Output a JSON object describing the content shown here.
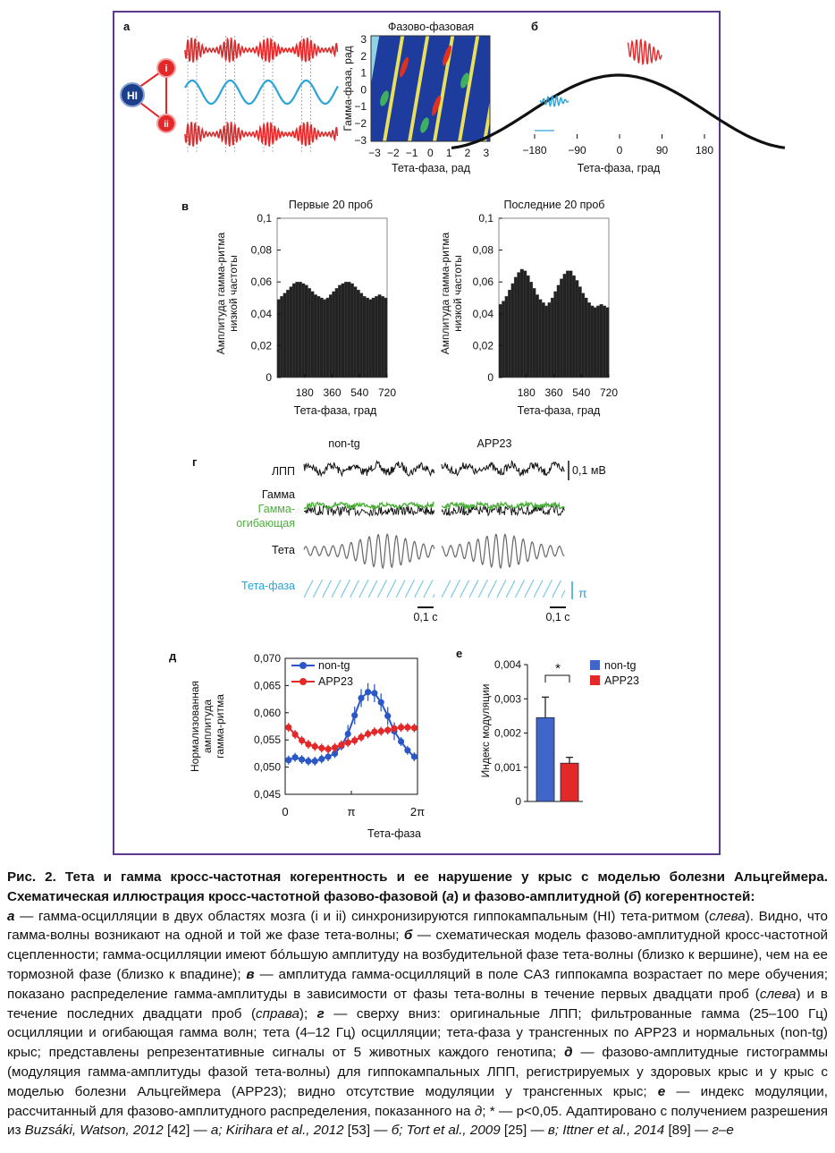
{
  "panels": {
    "a": {
      "letter": "а",
      "hl_label": "HI",
      "node_i": "i",
      "node_ii": "ii",
      "heatmap_title": "Фазово-фазовая",
      "ylabel": "Гамма-фаза, рад",
      "xlabel": "Тета-фаза, рад",
      "yticks": [
        "3",
        "2",
        "1",
        "0",
        "−1",
        "−2",
        "−3"
      ],
      "xticks": [
        "−3",
        "−2",
        "−1",
        "0",
        "1",
        "2",
        "3"
      ]
    },
    "b": {
      "letter": "б",
      "xticks": [
        "−180",
        "−90",
        "0",
        "90",
        "180"
      ],
      "xlabel": "Тета-фаза, град"
    },
    "c": {
      "letter": "в",
      "left_title": "Первые 20 проб",
      "right_title": "Последние 20 проб",
      "ylabel1": "Амплитуда  гамма-ритма",
      "ylabel2": "низкой частоты",
      "yticks": [
        "0,1",
        "0,08",
        "0,06",
        "0,04",
        "0,02",
        "0"
      ],
      "xticks": [
        "180",
        "360",
        "540",
        "720"
      ],
      "xlabel": "Тета-фаза, град"
    },
    "d": {
      "letter": "г",
      "col1": "non-tg",
      "col2": "APP23",
      "row_lfp": "ЛПП",
      "row_gamma": "Гамма",
      "row_env1": "Гамма-",
      "row_env2": "огибающая",
      "row_theta": "Тета",
      "row_phase": "Тета-фаза",
      "scale_mv": "0,1 мВ",
      "scale_pi": "π",
      "scale_s1": "0,1 с",
      "scale_s2": "0,1 с"
    },
    "e": {
      "letter": "д",
      "ylabel1": "Нормализованная",
      "ylabel2": "амплитуда",
      "ylabel3": "гамма-ритма",
      "yticks": [
        "0,070",
        "0,065",
        "0,060",
        "0,055",
        "0,050",
        "0,045"
      ],
      "xticks": [
        "0",
        "π",
        "2π"
      ],
      "xlabel": "Тета-фаза",
      "legend1": "non-tg",
      "legend2": "APP23"
    },
    "f": {
      "letter": "е",
      "ylabel": "Индекс модуляции",
      "yticks": [
        "0,004",
        "0,003",
        "0,002",
        "0,001",
        "0"
      ],
      "star": "*",
      "legend1": "non-tg",
      "legend2": "APP23"
    }
  },
  "chart_data": [
    {
      "type": "bar",
      "panel": "в-left",
      "title": "Первые 20 проб",
      "xlabel": "Тета-фаза, град",
      "ylabel": "Амплитуда гамма-ритма низкой частоты",
      "xlim": [
        0,
        720
      ],
      "ylim": [
        0,
        0.1
      ],
      "x": [
        10,
        30,
        50,
        70,
        90,
        110,
        130,
        150,
        170,
        190,
        210,
        230,
        250,
        270,
        290,
        310,
        330,
        350,
        370,
        390,
        410,
        430,
        450,
        470,
        490,
        510,
        530,
        550,
        570,
        590,
        610,
        630,
        650,
        670,
        690,
        710
      ],
      "values": [
        0.049,
        0.051,
        0.053,
        0.055,
        0.057,
        0.059,
        0.06,
        0.06,
        0.059,
        0.058,
        0.056,
        0.054,
        0.052,
        0.051,
        0.05,
        0.049,
        0.05,
        0.052,
        0.054,
        0.056,
        0.058,
        0.059,
        0.06,
        0.06,
        0.059,
        0.057,
        0.055,
        0.053,
        0.051,
        0.05,
        0.049,
        0.05,
        0.051,
        0.052,
        0.051,
        0.05
      ]
    },
    {
      "type": "bar",
      "panel": "в-right",
      "title": "Последние 20 проб",
      "xlabel": "Тета-фаза, град",
      "ylabel": "Амплитуда гамма-ритма низкой частоты",
      "xlim": [
        0,
        720
      ],
      "ylim": [
        0,
        0.1
      ],
      "x": [
        10,
        30,
        50,
        70,
        90,
        110,
        130,
        150,
        170,
        190,
        210,
        230,
        250,
        270,
        290,
        310,
        330,
        350,
        370,
        390,
        410,
        430,
        450,
        470,
        490,
        510,
        530,
        550,
        570,
        590,
        610,
        630,
        650,
        670,
        690,
        710
      ],
      "values": [
        0.046,
        0.048,
        0.051,
        0.055,
        0.059,
        0.063,
        0.066,
        0.068,
        0.067,
        0.064,
        0.06,
        0.056,
        0.052,
        0.049,
        0.047,
        0.045,
        0.047,
        0.05,
        0.054,
        0.058,
        0.062,
        0.065,
        0.067,
        0.067,
        0.064,
        0.061,
        0.057,
        0.053,
        0.05,
        0.047,
        0.045,
        0.044,
        0.045,
        0.046,
        0.045,
        0.044
      ]
    },
    {
      "type": "line",
      "panel": "д",
      "xlabel": "Тета-фаза",
      "ylabel": "Нормализованная амплитуда гамма-ритма",
      "xlim": [
        0,
        6.283
      ],
      "ylim": [
        0.045,
        0.07
      ],
      "series": [
        {
          "name": "non-tg",
          "color": "#2b58c6",
          "x": [
            0.16,
            0.47,
            0.79,
            1.1,
            1.41,
            1.73,
            2.04,
            2.36,
            2.67,
            2.98,
            3.3,
            3.61,
            3.93,
            4.24,
            4.55,
            4.87,
            5.18,
            5.5,
            5.81,
            6.13
          ],
          "values": [
            0.0513,
            0.0518,
            0.0514,
            0.0511,
            0.0511,
            0.0515,
            0.0519,
            0.0525,
            0.0539,
            0.0561,
            0.0595,
            0.0627,
            0.0638,
            0.0636,
            0.0619,
            0.0594,
            0.0566,
            0.0547,
            0.0531,
            0.0519
          ]
        },
        {
          "name": "APP23",
          "color": "#e3282a",
          "x": [
            0.16,
            0.47,
            0.79,
            1.1,
            1.41,
            1.73,
            2.04,
            2.36,
            2.67,
            2.98,
            3.3,
            3.61,
            3.93,
            4.24,
            4.55,
            4.87,
            5.18,
            5.5,
            5.81,
            6.13
          ],
          "values": [
            0.0573,
            0.056,
            0.0549,
            0.0542,
            0.0538,
            0.0535,
            0.0533,
            0.0536,
            0.0541,
            0.0545,
            0.0549,
            0.0555,
            0.0561,
            0.0565,
            0.0566,
            0.0568,
            0.0571,
            0.0573,
            0.0573,
            0.0572
          ]
        }
      ]
    },
    {
      "type": "bar",
      "panel": "е",
      "ylabel": "Индекс модуляции",
      "ylim": [
        0,
        0.004
      ],
      "categories": [
        "non-tg",
        "APP23"
      ],
      "values": [
        0.00245,
        0.00112
      ],
      "errors": [
        0.0006,
        0.00017
      ],
      "colors": [
        "#3f66c8",
        "#e3282a"
      ]
    }
  ],
  "caption": {
    "fig_label": "Рис. 2.",
    "title_bold": "Тета и гамма кросс-частотная когерентность и ее нарушение у крыс с моделью болезни Альцгеймера. Схематическая иллюстрация кросс-частотной фазово-фазовой (",
    "b1": "а",
    "title_mid": ") и фазово-амплитудной (",
    "b2": "б",
    "title_end": ") когерентностей:",
    "l_a": "а",
    "t_a": " — гамма-осцилляции в двух областях мозга (i и ii) синхронизируются гиппокампальным (HI) тета-ритмом (",
    "t_a_i": "слева",
    "t_a2": "). Видно, что гамма-волны возникают на одной и той же фазе тета-волны; ",
    "l_b": "б",
    "t_b": " — схематическая модель фазово-амплитудной кросс-частотной сцепленности; гамма-осцилляции имеют бóльшую амплитуду на возбудительной фазе тета-волны (близко к вершине), чем на ее тормозной фазе (близко к впадине); ",
    "l_v": "в",
    "t_v": " — амплитуда гамма-осцилляций в поле CA3 гиппокампа возрастает по мере обучения; показано распределение гамма-амплитуды в зависимости от фазы тета-волны в течение первых двадцати проб (",
    "t_v_i1": "слева",
    "t_v2": ") и в течение последних двадцати проб (",
    "t_v_i2": "справа",
    "t_v3": "); ",
    "l_g": "г",
    "t_g": " — сверху вниз: оригинальные ЛПП; фильтрованные гамма (25–100 Гц) осцилляции и огибающая гамма волн; тета (4–12 Гц) осцилляции; тета-фаза у трансгенных по APP23 и нормальных (non-tg) крыс; представлены репрезентативные сигналы от 5 животных каждого генотипа; ",
    "l_d": "д",
    "t_d": " — фазово-амплитудные гистограммы (модуляция гамма-амплитуды фазой тета-волны) для гиппокампальных ЛПП, регистрируемых у здоровых крыс и у крыс с моделью болезни Альцгеймера (APP23); видно отсутствие модуляции у трансгенных крыс; ",
    "l_e": "е",
    "t_e": " — индекс модуляции, рассчитанный для фазово-амплитудного распределения, показанного на ",
    "t_e_i": "д",
    "t_e2": "; * — p<0,05. Адаптировано с получением разрешения из ",
    "ref1_i": "Buzsáki, Watson, 2012",
    "ref1": " [42] — ",
    "ref1_p": "а; Kirihara et al., 2012",
    "ref2": " [53] — ",
    "ref2_p": "б; Tort et al., 2009",
    "ref3": " [25] — ",
    "ref3_p": "в; Ittner et al., 2014",
    "ref4": " [89] — ",
    "ref4_p": "г–е"
  },
  "colors": {
    "frame": "#5a3a8a",
    "red": "#e3282a",
    "blue": "#2b58c6",
    "cyan": "#2aa3d8",
    "green": "#4caf3a",
    "navy": "#1b3f8a"
  }
}
